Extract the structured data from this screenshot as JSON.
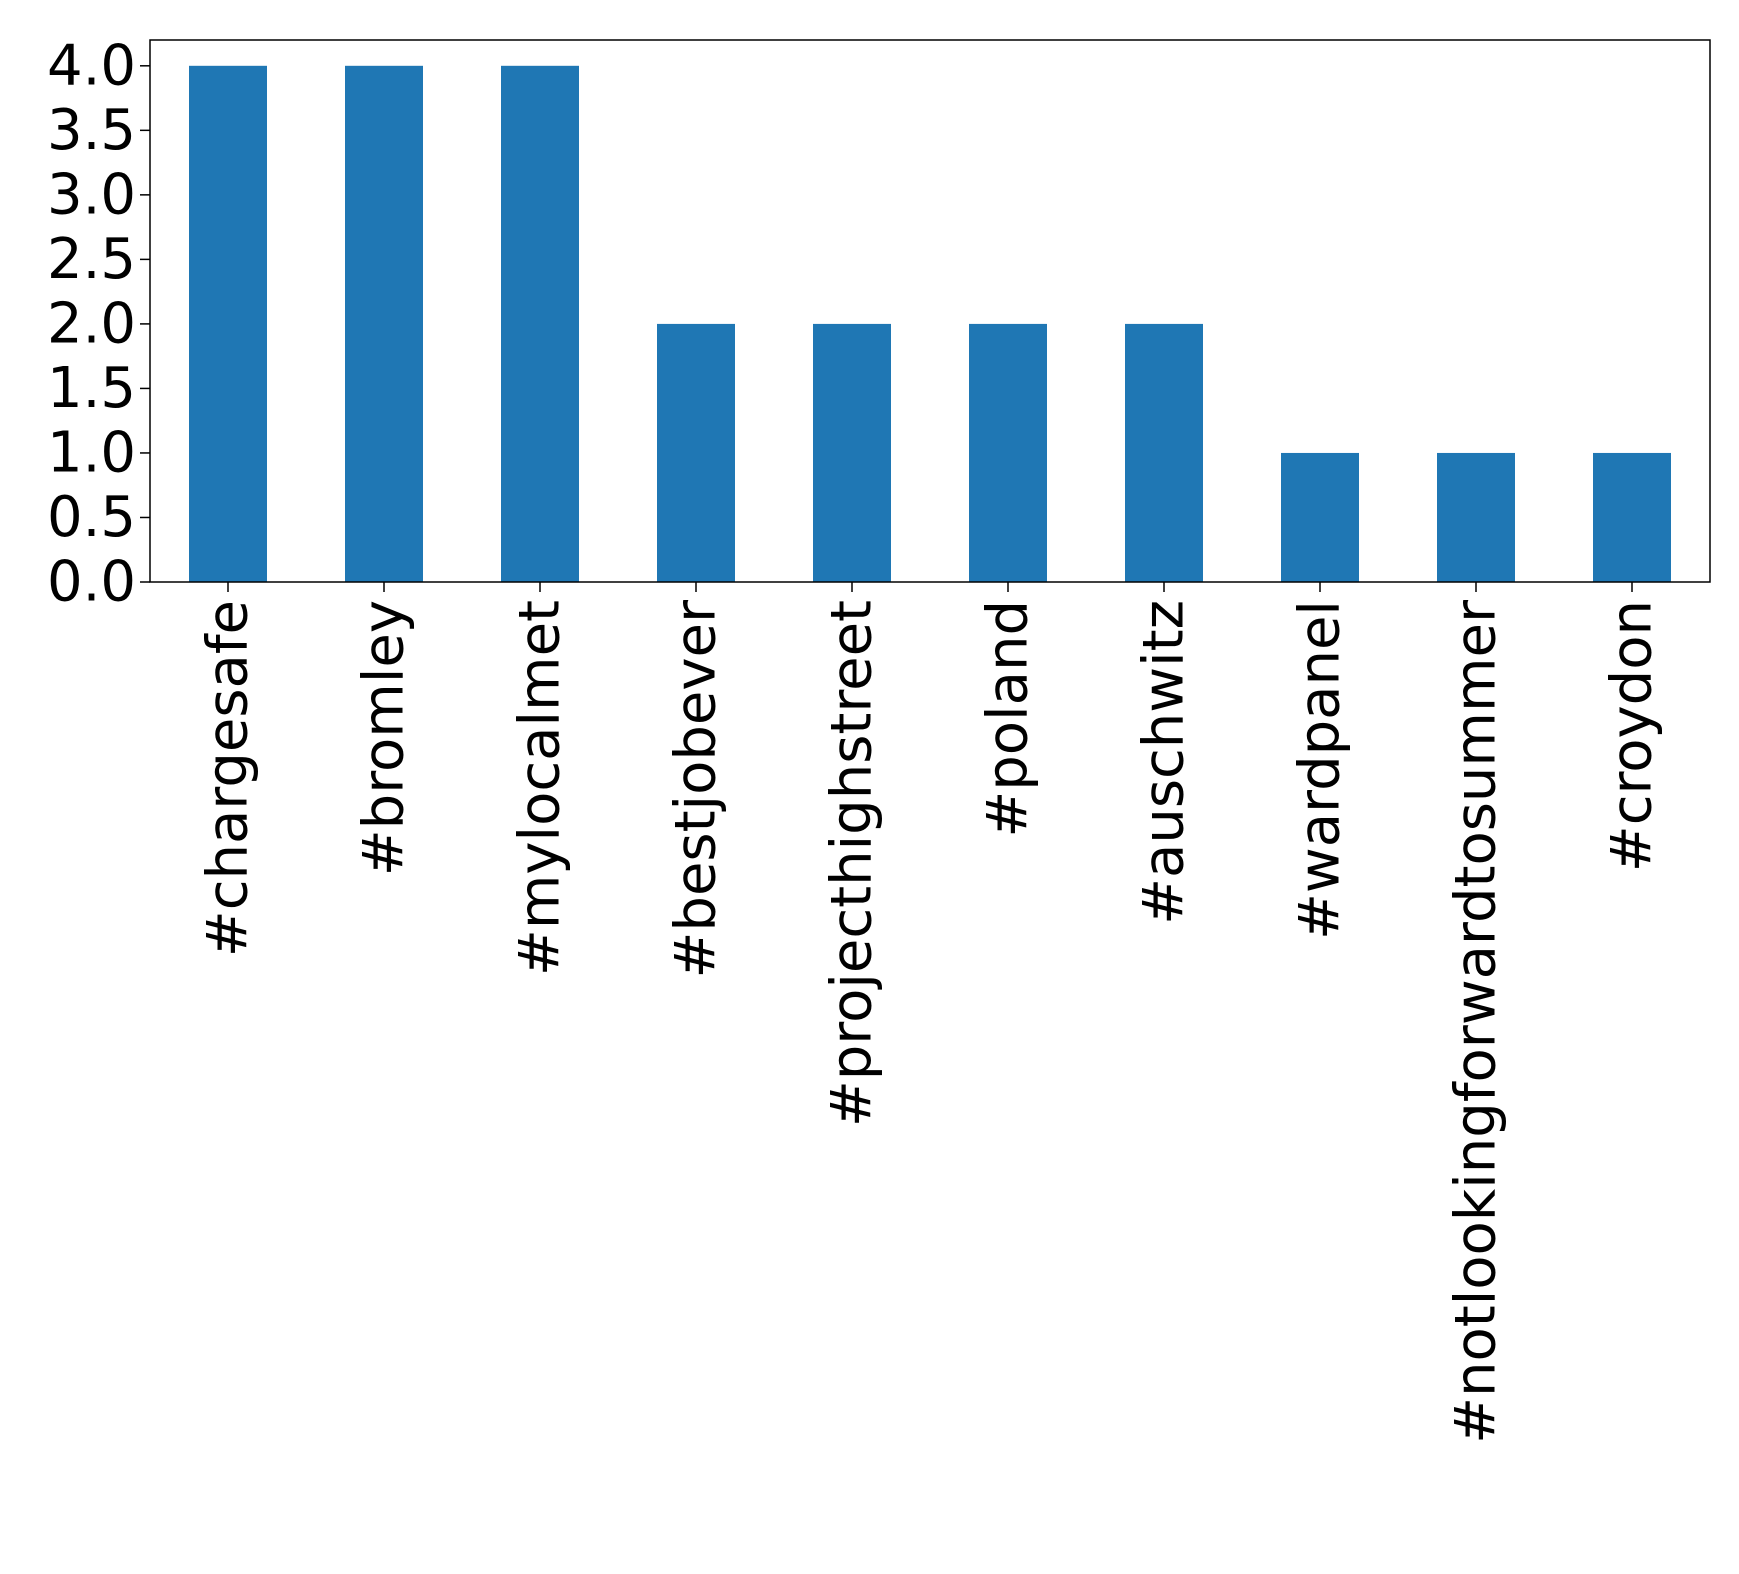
{
  "chart_data": {
    "type": "bar",
    "title": "",
    "xlabel": "",
    "ylabel": "",
    "categories": [
      "#chargesafe",
      "#bromley",
      "#mylocalmet",
      "#bestjobever",
      "#projecthighstreet",
      "#poland",
      "#auschwitz",
      "#wardpanel",
      "#notlookingforwardtosummer",
      "#croydon"
    ],
    "values": [
      4,
      4,
      4,
      2,
      2,
      2,
      2,
      1,
      1,
      1
    ],
    "ylim": [
      0,
      4.2
    ],
    "yticks": [
      "0.0",
      "0.5",
      "1.0",
      "1.5",
      "2.0",
      "2.5",
      "3.0",
      "3.5",
      "4.0"
    ],
    "bar_color": "#1f77b4",
    "grid": false,
    "legend": "none"
  }
}
